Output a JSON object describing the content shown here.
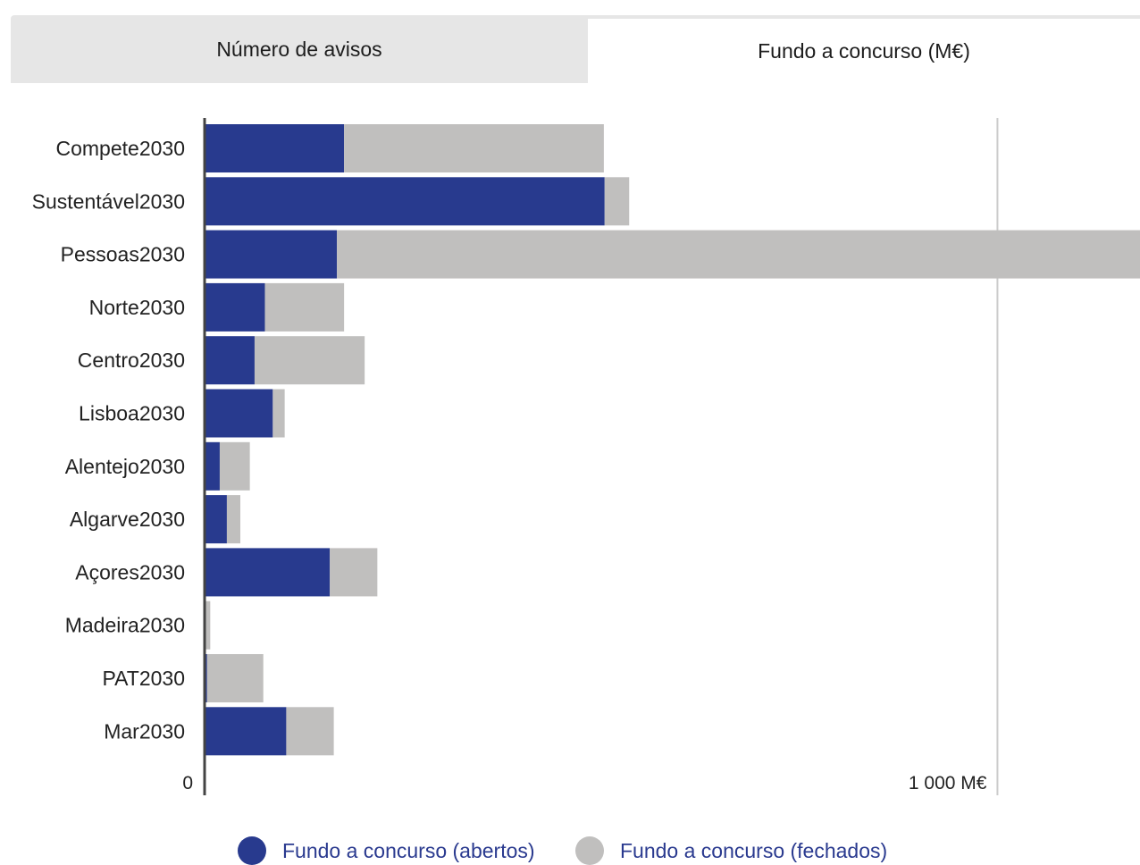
{
  "tabs": [
    {
      "label": "Número de avisos",
      "active": false
    },
    {
      "label": "Fundo a concurso (M€)",
      "active": true
    }
  ],
  "colors": {
    "abertos": "#283a8e",
    "fechados": "#c0bfbe",
    "axis": "#444444",
    "grid": "#cccccc",
    "tab_inactive_bg": "#e6e6e6"
  },
  "chart_data": {
    "type": "bar",
    "orientation": "horizontal",
    "stacked": true,
    "categories": [
      "Compete2030",
      "Sustentável2030",
      "Pessoas2030",
      "Norte2030",
      "Centro2030",
      "Lisboa2030",
      "Alentejo2030",
      "Algarve2030",
      "Açores2030",
      "Madeira2030",
      "PAT2030",
      "Mar2030"
    ],
    "series": [
      {
        "name": "Fundo a concurso (abertos)",
        "values": [
          175,
          504,
          166,
          75,
          62,
          85,
          18,
          27,
          157,
          0,
          2,
          102
        ]
      },
      {
        "name": "Fundo a concurso (fechados)",
        "values": [
          328,
          31,
          1014,
          100,
          139,
          15,
          38,
          17,
          60,
          6,
          71,
          60
        ]
      }
    ],
    "xlim": [
      0,
      1180
    ],
    "x_ticks": [
      {
        "value": 0,
        "label": "0"
      },
      {
        "value": 1000,
        "label": "1 000 M€"
      }
    ],
    "grid": true,
    "legend_position": "bottom"
  }
}
